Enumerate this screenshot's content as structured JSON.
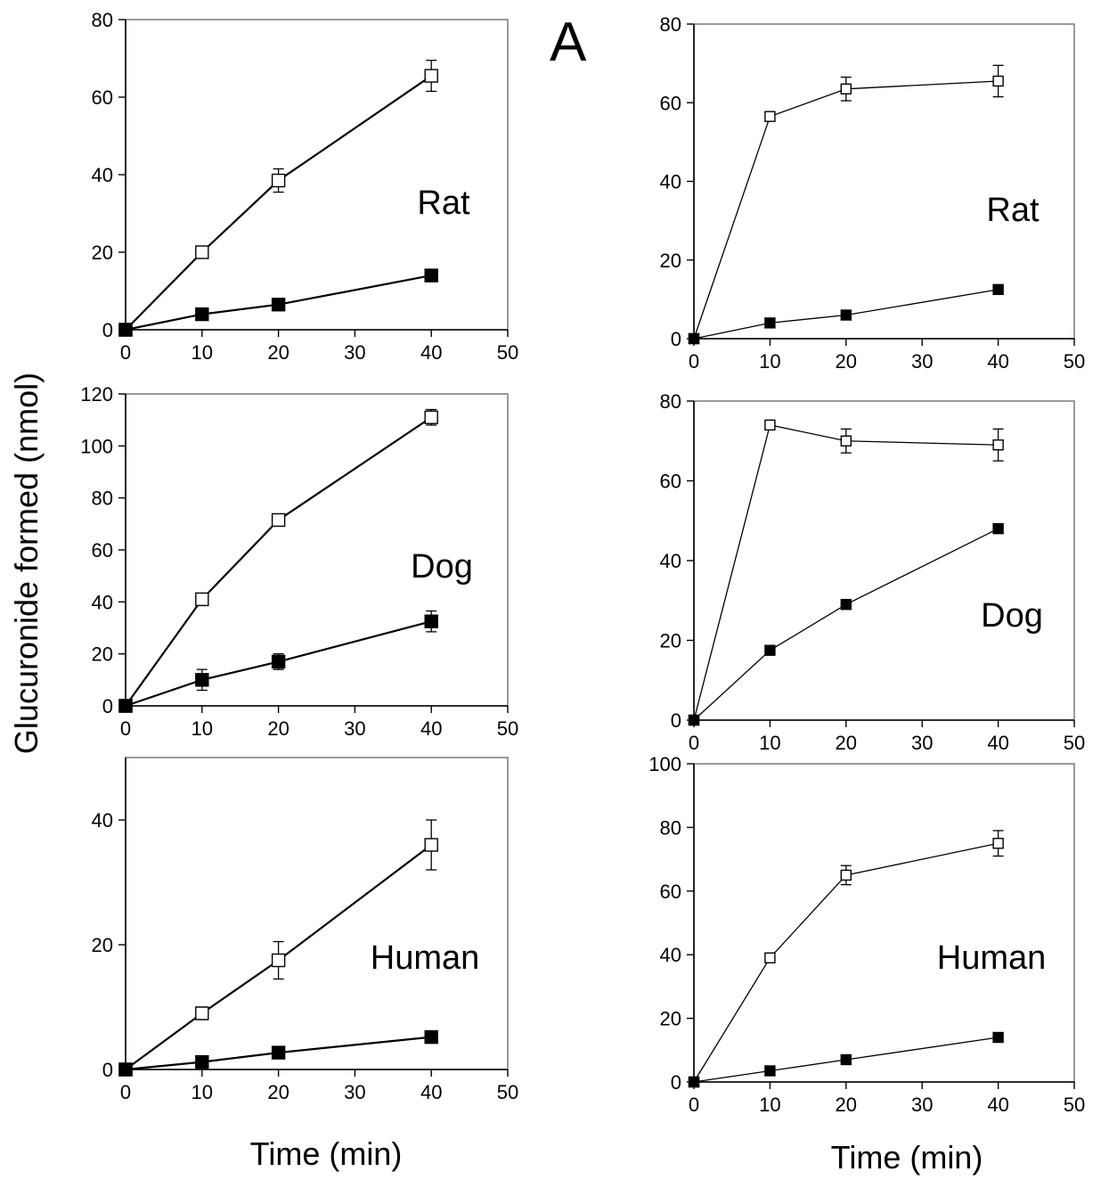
{
  "figure_label": "A",
  "y_axis_title": "Glucuronide formed (nmol)",
  "x_axis_title_left": "Time (min)",
  "x_axis_title_right": "Time (min)",
  "series_styles": {
    "open_square": {
      "fill": "#ffffff",
      "stroke": "#000000"
    },
    "filled_square": {
      "fill": "#000000",
      "stroke": "#000000"
    }
  },
  "chart_data": [
    {
      "type": "line",
      "panel_label": "Rat",
      "xlim": [
        0,
        50
      ],
      "ylim": [
        0,
        80
      ],
      "x_ticks": [
        0,
        10,
        20,
        30,
        40,
        50
      ],
      "y_ticks": [
        0,
        20,
        40,
        60,
        80
      ],
      "series": [
        {
          "marker": "open_square",
          "x": [
            0,
            10,
            20,
            40
          ],
          "y": [
            0,
            20,
            38.5,
            65.5
          ],
          "err": [
            0,
            1.2,
            3,
            4
          ]
        },
        {
          "marker": "filled_square",
          "x": [
            0,
            10,
            20,
            40
          ],
          "y": [
            0,
            4,
            6.5,
            14
          ],
          "err": [
            0,
            1,
            1,
            1
          ]
        }
      ]
    },
    {
      "type": "line",
      "panel_label": "Dog",
      "xlim": [
        0,
        50
      ],
      "ylim": [
        0,
        120
      ],
      "x_ticks": [
        0,
        10,
        20,
        30,
        40,
        50
      ],
      "y_ticks": [
        0,
        20,
        40,
        60,
        80,
        100,
        120
      ],
      "series": [
        {
          "marker": "open_square",
          "x": [
            0,
            10,
            20,
            40
          ],
          "y": [
            0,
            41,
            71.5,
            111
          ],
          "err": [
            0,
            2,
            2,
            3
          ]
        },
        {
          "marker": "filled_square",
          "x": [
            0,
            10,
            20,
            40
          ],
          "y": [
            0,
            10,
            17,
            32.5
          ],
          "err": [
            0,
            4,
            3,
            4
          ]
        }
      ]
    },
    {
      "type": "line",
      "panel_label": "Human",
      "xlim": [
        0,
        50
      ],
      "ylim": [
        0,
        50
      ],
      "x_ticks": [
        0,
        10,
        20,
        30,
        40,
        50
      ],
      "y_ticks": [
        0,
        20,
        40
      ],
      "series": [
        {
          "marker": "open_square",
          "x": [
            0,
            10,
            20,
            40
          ],
          "y": [
            0,
            9,
            17.5,
            36
          ],
          "err": [
            0,
            1,
            3,
            4
          ]
        },
        {
          "marker": "filled_square",
          "x": [
            0,
            10,
            20,
            40
          ],
          "y": [
            0,
            1.2,
            2.7,
            5.2
          ],
          "err": [
            0,
            0.5,
            0.5,
            0.5
          ]
        }
      ]
    },
    {
      "type": "line",
      "panel_label": "Rat",
      "xlim": [
        0,
        50
      ],
      "ylim": [
        0,
        80
      ],
      "x_ticks": [
        0,
        10,
        20,
        30,
        40,
        50
      ],
      "y_ticks": [
        0,
        20,
        40,
        60,
        80
      ],
      "series": [
        {
          "marker": "open_square",
          "x": [
            0,
            10,
            20,
            40
          ],
          "y": [
            0,
            56.5,
            63.5,
            65.5
          ],
          "err": [
            0,
            1,
            3,
            4
          ]
        },
        {
          "marker": "filled_square",
          "x": [
            0,
            10,
            20,
            40
          ],
          "y": [
            0,
            4,
            6,
            12.5
          ],
          "err": [
            0,
            0,
            0,
            0
          ]
        }
      ]
    },
    {
      "type": "line",
      "panel_label": "Dog",
      "xlim": [
        0,
        50
      ],
      "ylim": [
        0,
        80
      ],
      "x_ticks": [
        0,
        10,
        20,
        30,
        40,
        50
      ],
      "y_ticks": [
        0,
        20,
        40,
        60,
        80
      ],
      "series": [
        {
          "marker": "open_square",
          "x": [
            0,
            10,
            20,
            40
          ],
          "y": [
            0,
            74,
            70,
            69
          ],
          "err": [
            0,
            1,
            3,
            4
          ]
        },
        {
          "marker": "filled_square",
          "x": [
            0,
            10,
            20,
            40
          ],
          "y": [
            0,
            17.5,
            29,
            48
          ],
          "err": [
            0,
            0,
            0,
            0
          ]
        }
      ]
    },
    {
      "type": "line",
      "panel_label": "Human",
      "xlim": [
        0,
        50
      ],
      "ylim": [
        0,
        100
      ],
      "x_ticks": [
        0,
        10,
        20,
        30,
        40,
        50
      ],
      "y_ticks": [
        0,
        20,
        40,
        60,
        80,
        100
      ],
      "series": [
        {
          "marker": "open_square",
          "x": [
            0,
            10,
            20,
            40
          ],
          "y": [
            0,
            39,
            65,
            75
          ],
          "err": [
            0,
            1,
            3,
            4
          ]
        },
        {
          "marker": "filled_square",
          "x": [
            0,
            10,
            20,
            40
          ],
          "y": [
            0,
            3.5,
            7,
            14
          ],
          "err": [
            0,
            0,
            0,
            0
          ]
        }
      ]
    }
  ]
}
